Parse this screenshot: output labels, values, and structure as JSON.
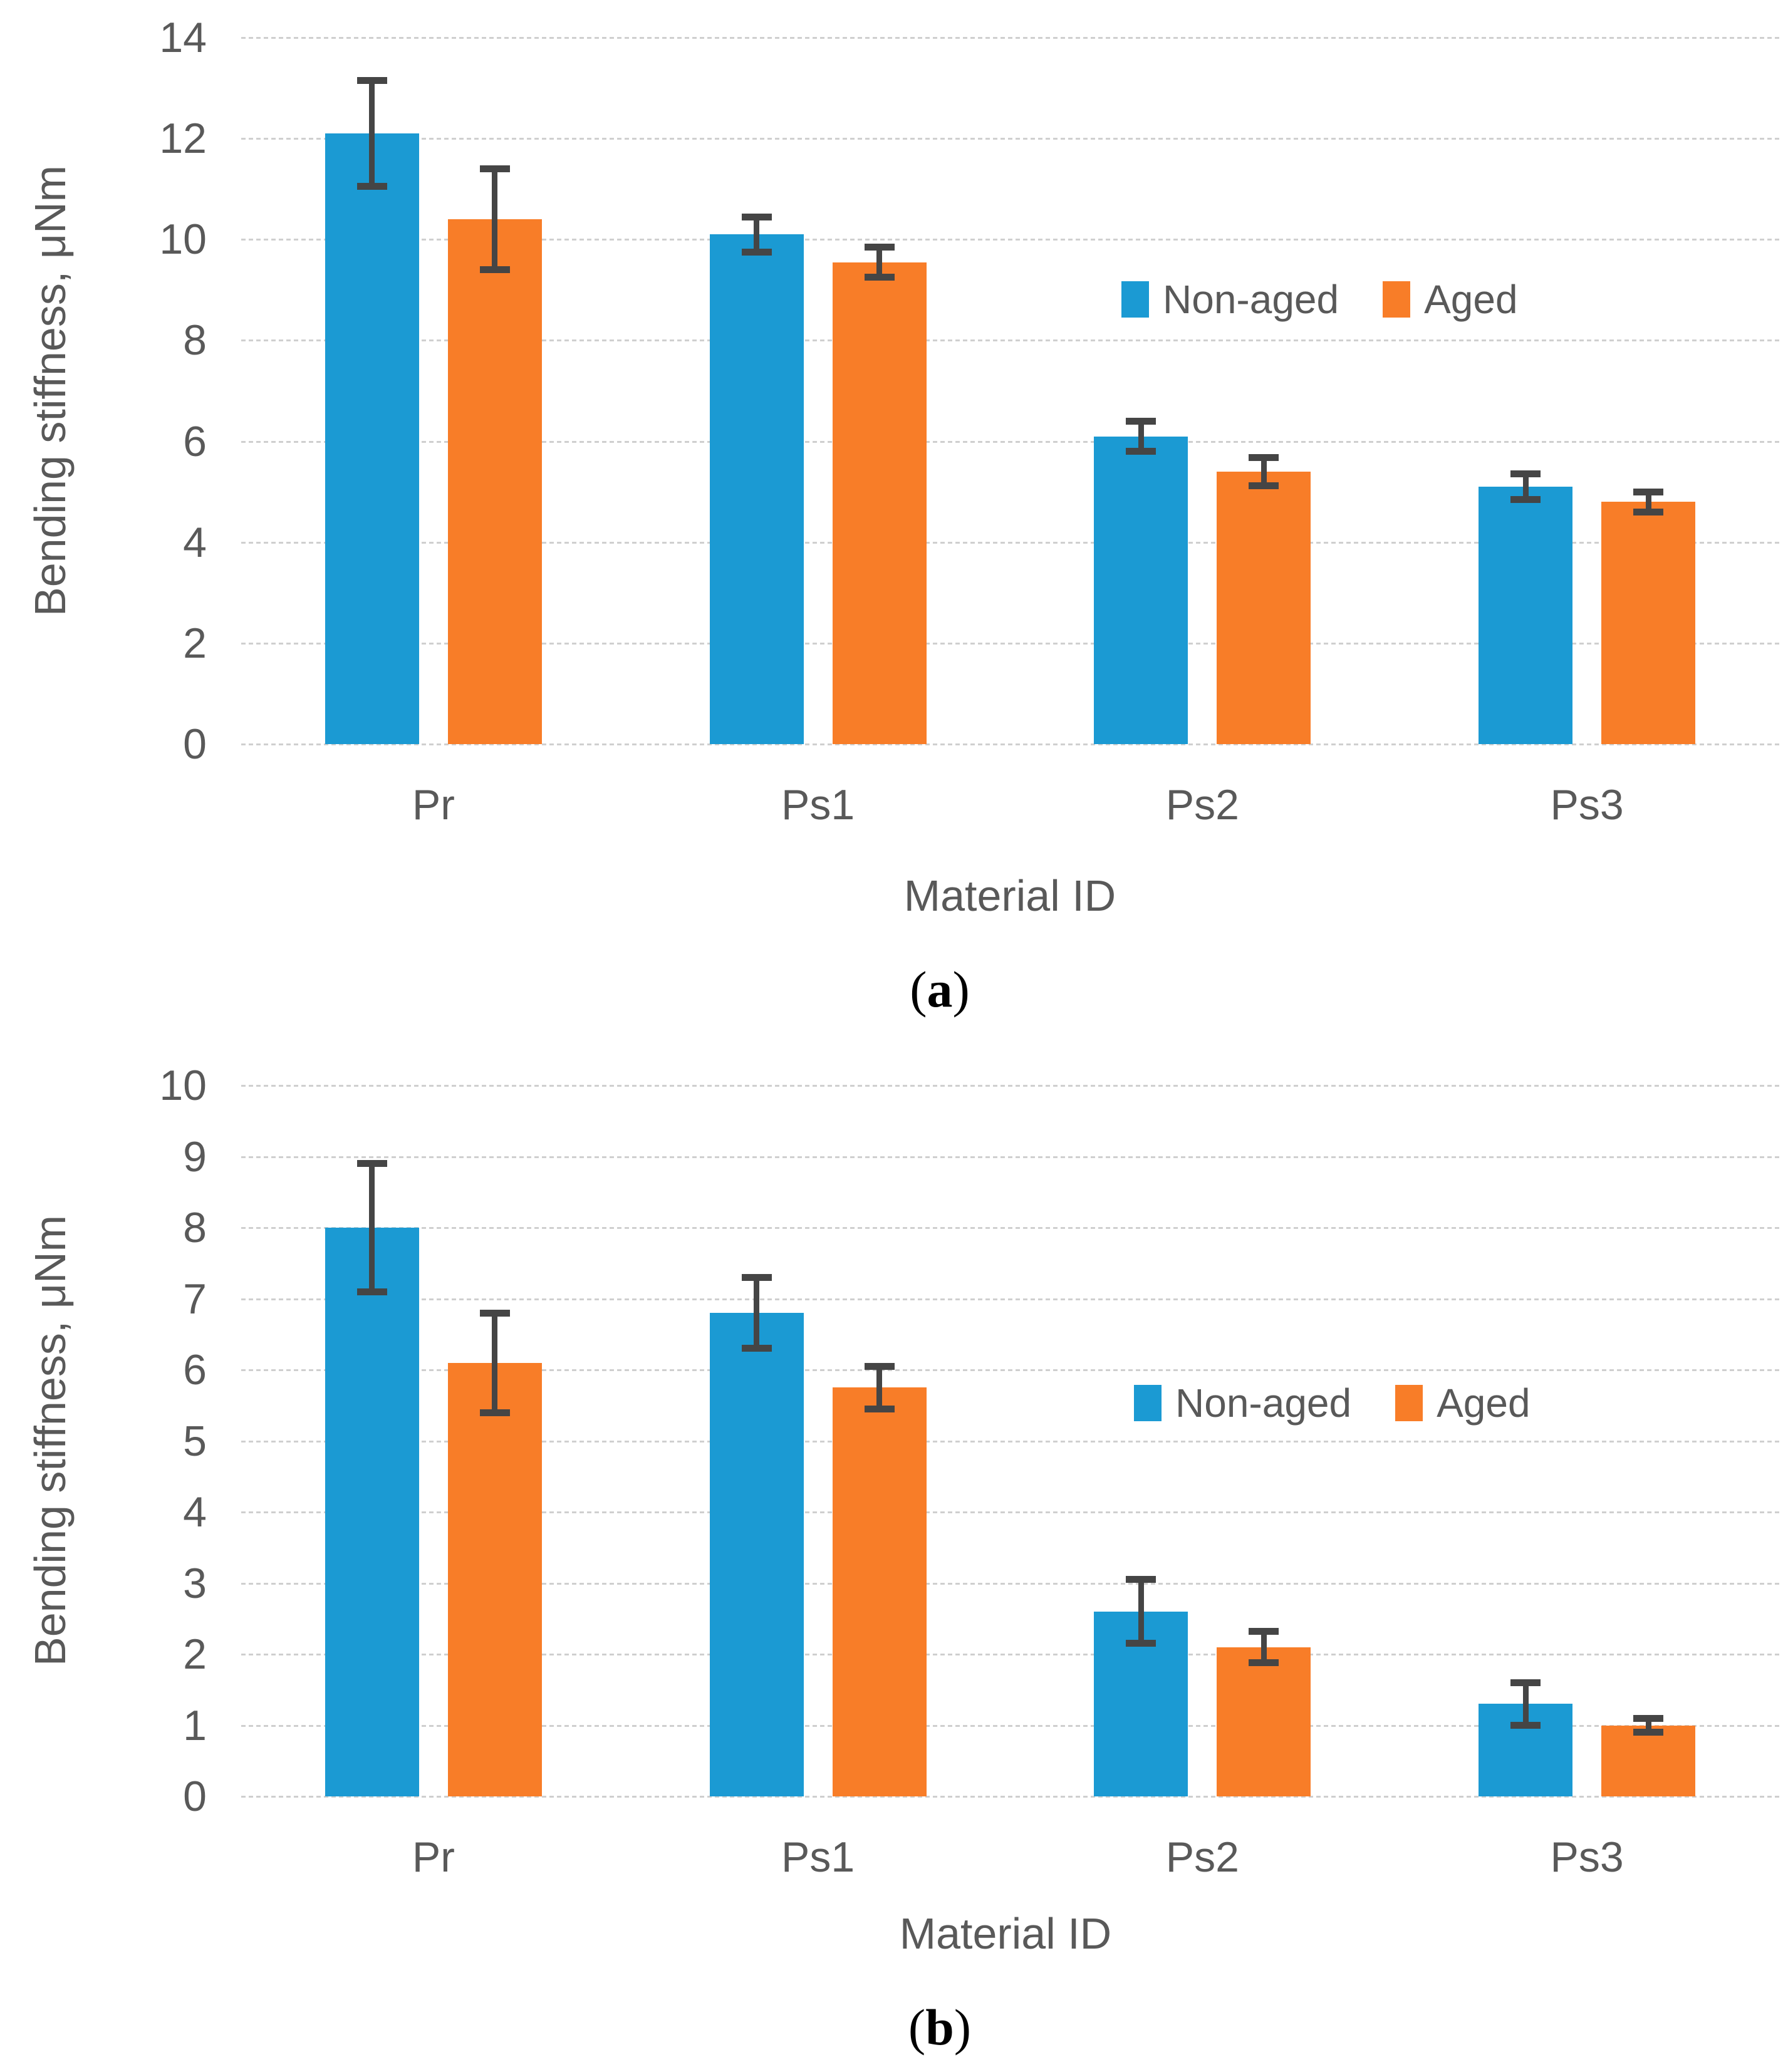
{
  "figure": {
    "description": "Two stacked grouped-bar panels comparing bending stiffness of non-aged and aged materials",
    "colors": {
      "non_aged": "#1b9ad3",
      "aged": "#f87d28",
      "error_bar": "#454545",
      "gridline": "#cfcfcf",
      "axis_text": "#595959",
      "caption_text": "#000000"
    }
  },
  "chart_data": [
    {
      "type": "bar",
      "panel": "a",
      "title": "",
      "xlabel": "Material ID",
      "ylabel": "Bending stiffness, μNm",
      "categories": [
        "Pr",
        "Ps1",
        "Ps2",
        "Ps3"
      ],
      "series": [
        {
          "name": "Non-aged",
          "color": "#1b9ad3",
          "values": [
            12.1,
            10.1,
            6.1,
            5.1
          ],
          "errors": [
            1.05,
            0.35,
            0.3,
            0.25
          ]
        },
        {
          "name": "Aged",
          "color": "#f87d28",
          "values": [
            10.4,
            9.55,
            5.4,
            4.8
          ],
          "errors": [
            1.0,
            0.3,
            0.28,
            0.2
          ]
        }
      ],
      "ylim": [
        0,
        14
      ],
      "yticks": [
        0,
        2,
        4,
        6,
        8,
        10,
        12,
        14
      ],
      "grid": "horizontal dashed",
      "legend_position": "inside right, near value 8.8",
      "caption": {
        "open": "(",
        "letter": "a",
        "close": ")"
      }
    },
    {
      "type": "bar",
      "panel": "b",
      "title": "",
      "xlabel": "Material ID",
      "ylabel": "Bending stiffness, μNm",
      "categories": [
        "Pr",
        "Ps1",
        "Ps2",
        "Ps3"
      ],
      "series": [
        {
          "name": "Non-aged",
          "color": "#1b9ad3",
          "values": [
            8.0,
            6.8,
            2.6,
            1.3
          ],
          "errors": [
            0.9,
            0.5,
            0.45,
            0.3
          ]
        },
        {
          "name": "Aged",
          "color": "#f87d28",
          "values": [
            6.1,
            5.75,
            2.1,
            1.0
          ],
          "errors": [
            0.7,
            0.3,
            0.22,
            0.1
          ]
        }
      ],
      "ylim": [
        0,
        10
      ],
      "yticks": [
        0,
        1,
        2,
        3,
        4,
        5,
        6,
        7,
        8,
        9,
        10
      ],
      "grid": "horizontal dashed",
      "legend_position": "inside right, near value 5.5",
      "caption": {
        "open": "(",
        "letter": "b",
        "close": ")"
      }
    }
  ]
}
